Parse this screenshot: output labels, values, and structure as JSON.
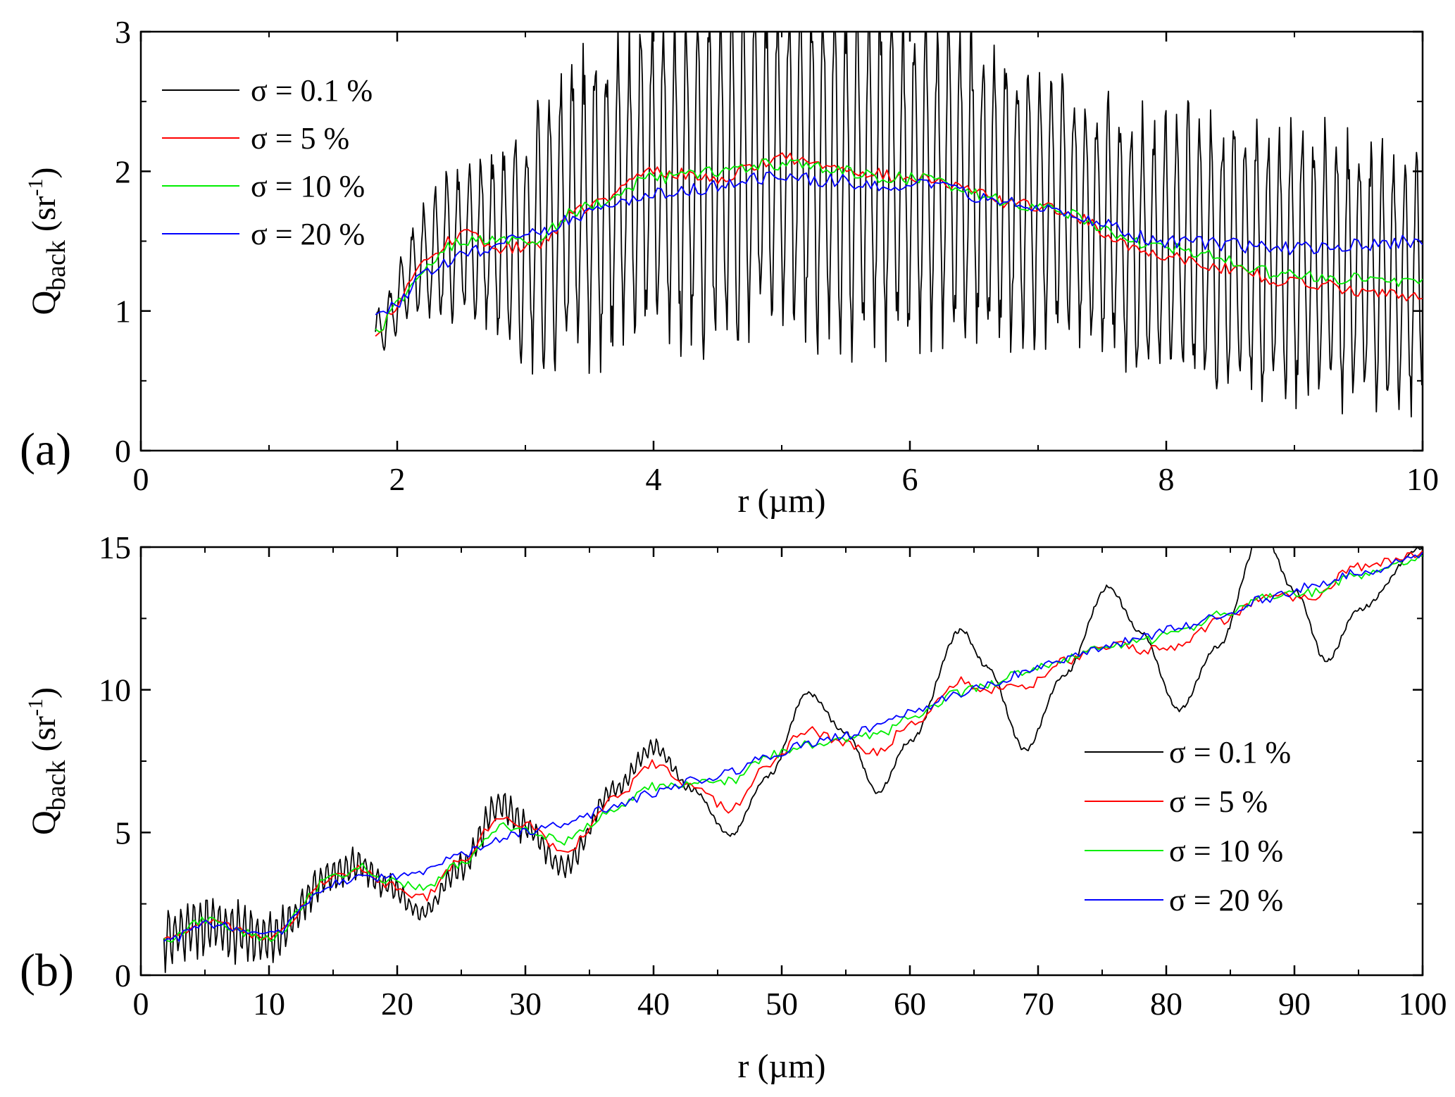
{
  "chart_data": [
    {
      "type": "line",
      "panel_label": "(a)",
      "xlabel": "r (µm)",
      "ylabel_main": "Q",
      "ylabel_sub": "back",
      "ylabel_unit": " (sr",
      "ylabel_exp": "-1",
      "ylabel_close": ")",
      "xlim": [
        0,
        10
      ],
      "ylim": [
        0,
        3
      ],
      "xticks": [
        "0",
        "2",
        "4",
        "6",
        "8",
        "10"
      ],
      "yticks": [
        "0",
        "1",
        "2",
        "3"
      ],
      "grid": false,
      "legend_position": "top-left",
      "series": [
        {
          "name": "σ = 0.1 %",
          "color": "#000000",
          "x_range": [
            1.83,
            10
          ],
          "points": 1200,
          "anchors": [
            [
              1.83,
              0.85
            ],
            [
              2.2,
              1.35
            ],
            [
              2.5,
              1.5
            ],
            [
              3.0,
              1.5
            ],
            [
              3.5,
              1.75
            ],
            [
              4.0,
              1.95
            ],
            [
              5.0,
              2.05
            ],
            [
              6.0,
              1.95
            ],
            [
              7.0,
              1.8
            ],
            [
              8.0,
              1.45
            ],
            [
              9.0,
              1.35
            ],
            [
              10.0,
              1.2
            ]
          ],
          "amp_anchors": [
            [
              1.83,
              0.15
            ],
            [
              2.5,
              0.5
            ],
            [
              3.5,
              1.0
            ],
            [
              4.5,
              1.1
            ],
            [
              5.5,
              1.1
            ],
            [
              6.5,
              1.0
            ],
            [
              7.5,
              0.8
            ],
            [
              8.5,
              0.9
            ],
            [
              10.0,
              0.85
            ]
          ],
          "period": 0.089,
          "clip_top": 3
        },
        {
          "name": "σ = 5 %",
          "color": "#ff0000",
          "x_range": [
            1.83,
            10
          ],
          "points": 260,
          "anchors": [
            [
              1.83,
              0.8
            ],
            [
              2.0,
              1.05
            ],
            [
              2.2,
              1.35
            ],
            [
              2.5,
              1.55
            ],
            [
              2.8,
              1.45
            ],
            [
              3.0,
              1.45
            ],
            [
              3.5,
              1.75
            ],
            [
              4.0,
              2.0
            ],
            [
              4.5,
              1.95
            ],
            [
              5.0,
              2.1
            ],
            [
              5.3,
              2.05
            ],
            [
              6.0,
              1.95
            ],
            [
              7.0,
              1.75
            ],
            [
              8.0,
              1.4
            ],
            [
              8.5,
              1.3
            ],
            [
              9.0,
              1.2
            ],
            [
              10.0,
              1.1
            ]
          ],
          "noise": 0.045
        },
        {
          "name": "σ = 10 %",
          "color": "#00ee00",
          "x_range": [
            1.83,
            10
          ],
          "points": 260,
          "anchors": [
            [
              1.83,
              0.85
            ],
            [
              2.0,
              1.05
            ],
            [
              2.2,
              1.3
            ],
            [
              2.5,
              1.5
            ],
            [
              3.0,
              1.5
            ],
            [
              3.5,
              1.75
            ],
            [
              4.0,
              1.95
            ],
            [
              5.0,
              2.05
            ],
            [
              6.0,
              1.95
            ],
            [
              7.0,
              1.75
            ],
            [
              8.0,
              1.45
            ],
            [
              9.0,
              1.25
            ],
            [
              10.0,
              1.2
            ]
          ],
          "noise": 0.045
        },
        {
          "name": "σ = 20 %",
          "color": "#0000ff",
          "x_range": [
            1.83,
            10
          ],
          "points": 260,
          "anchors": [
            [
              1.83,
              0.95
            ],
            [
              2.0,
              1.05
            ],
            [
              2.2,
              1.25
            ],
            [
              2.5,
              1.4
            ],
            [
              3.0,
              1.55
            ],
            [
              3.5,
              1.7
            ],
            [
              4.0,
              1.85
            ],
            [
              5.0,
              1.95
            ],
            [
              6.0,
              1.9
            ],
            [
              7.0,
              1.75
            ],
            [
              8.0,
              1.5
            ],
            [
              9.0,
              1.45
            ],
            [
              10.0,
              1.5
            ]
          ],
          "noise": 0.05
        }
      ]
    },
    {
      "type": "line",
      "panel_label": "(b)",
      "xlabel": "r (µm)",
      "ylabel_main": "Q",
      "ylabel_sub": "back",
      "ylabel_unit": " (sr",
      "ylabel_exp": "-1",
      "ylabel_close": ")",
      "xlim": [
        0,
        100
      ],
      "ylim": [
        0,
        15
      ],
      "xticks": [
        "0",
        "10",
        "20",
        "30",
        "40",
        "50",
        "60",
        "70",
        "80",
        "90",
        "100"
      ],
      "yticks": [
        "0",
        "5",
        "10",
        "15"
      ],
      "grid": false,
      "legend_position": "middle-right",
      "series": [
        {
          "name": "σ = 0.1 %",
          "color": "#000000",
          "x_range": [
            1.8,
            100
          ],
          "points": 900,
          "anchors": [
            [
              1.8,
              1.3
            ],
            [
              5,
              1.8
            ],
            [
              10,
              1.3
            ],
            [
              15,
              3.5
            ],
            [
              17,
              3.9
            ],
            [
              19,
              3.2
            ],
            [
              22,
              2.2
            ],
            [
              25,
              3.8
            ],
            [
              28,
              6.0
            ],
            [
              30,
              5.2
            ],
            [
              33,
              3.8
            ],
            [
              37,
              6.5
            ],
            [
              40,
              8.0
            ],
            [
              43,
              6.5
            ],
            [
              46,
              4.9
            ],
            [
              49,
              7.0
            ],
            [
              52,
              9.9
            ],
            [
              55,
              8.5
            ],
            [
              57.5,
              6.4
            ],
            [
              60,
              8.2
            ],
            [
              64,
              12.1
            ],
            [
              66,
              10.8
            ],
            [
              69,
              7.9
            ],
            [
              72,
              10.5
            ],
            [
              75.5,
              13.6
            ],
            [
              78,
              12.0
            ],
            [
              81,
              9.3
            ],
            [
              84,
              11.5
            ],
            [
              87.5,
              15.5
            ],
            [
              90,
              13.5
            ],
            [
              92.5,
              11.0
            ],
            [
              95,
              12.8
            ],
            [
              100,
              15.0
            ]
          ],
          "hf_amp_anchors": [
            [
              1.8,
              0.9
            ],
            [
              10,
              0.9
            ],
            [
              12,
              0.6
            ],
            [
              16,
              0.6
            ],
            [
              19,
              0.4
            ],
            [
              21,
              0.25
            ],
            [
              28,
              0.5
            ],
            [
              33,
              0.35
            ],
            [
              40,
              0.25
            ],
            [
              44,
              0.05
            ],
            [
              100,
              0.05
            ]
          ],
          "hf_period": 0.14,
          "noise": 0.04,
          "clip_top": 15
        },
        {
          "name": "σ = 5 %",
          "color": "#ff0000",
          "x_range": [
            1.8,
            100
          ],
          "points": 330,
          "anchors": [
            [
              1.8,
              1.2
            ],
            [
              5,
              1.9
            ],
            [
              10,
              1.3
            ],
            [
              15,
              3.4
            ],
            [
              17,
              3.8
            ],
            [
              19,
              3.2
            ],
            [
              22,
              2.7
            ],
            [
              25,
              4.0
            ],
            [
              28,
              5.5
            ],
            [
              30,
              5.3
            ],
            [
              33,
              4.3
            ],
            [
              37,
              6.2
            ],
            [
              40,
              7.4
            ],
            [
              43,
              6.6
            ],
            [
              46,
              5.8
            ],
            [
              49,
              7.4
            ],
            [
              52,
              8.6
            ],
            [
              55,
              8.1
            ],
            [
              57.5,
              7.8
            ],
            [
              60,
              8.8
            ],
            [
              64,
              10.3
            ],
            [
              66,
              10.0
            ],
            [
              69,
              10.1
            ],
            [
              72,
              11.0
            ],
            [
              76,
              11.6
            ],
            [
              78,
              11.4
            ],
            [
              81,
              11.5
            ],
            [
              84,
              12.4
            ],
            [
              88,
              13.3
            ],
            [
              91,
              13.2
            ],
            [
              95,
              14.3
            ],
            [
              100,
              14.8
            ]
          ],
          "noise": 0.16
        },
        {
          "name": "σ = 10 %",
          "color": "#00ee00",
          "x_range": [
            1.8,
            100
          ],
          "points": 330,
          "anchors": [
            [
              1.8,
              1.2
            ],
            [
              5,
              1.9
            ],
            [
              10,
              1.3
            ],
            [
              15,
              3.4
            ],
            [
              17,
              3.8
            ],
            [
              19,
              3.3
            ],
            [
              22,
              3.1
            ],
            [
              25,
              3.9
            ],
            [
              28,
              5.2
            ],
            [
              30,
              5.1
            ],
            [
              33,
              4.7
            ],
            [
              37,
              5.8
            ],
            [
              40,
              6.6
            ],
            [
              43,
              6.7
            ],
            [
              46,
              6.8
            ],
            [
              49,
              7.7
            ],
            [
              52,
              8.1
            ],
            [
              55,
              8.2
            ],
            [
              58,
              8.5
            ],
            [
              60,
              9.1
            ],
            [
              64,
              9.9
            ],
            [
              66,
              10.2
            ],
            [
              69,
              10.6
            ],
            [
              72,
              11.1
            ],
            [
              76,
              11.6
            ],
            [
              78,
              11.7
            ],
            [
              81,
              12.0
            ],
            [
              84,
              12.6
            ],
            [
              88,
              13.3
            ],
            [
              91,
              13.4
            ],
            [
              95,
              14.0
            ],
            [
              100,
              14.6
            ]
          ],
          "noise": 0.16
        },
        {
          "name": "σ = 20 %",
          "color": "#0000ff",
          "x_range": [
            1.8,
            100
          ],
          "points": 330,
          "anchors": [
            [
              1.8,
              1.1
            ],
            [
              5,
              1.8
            ],
            [
              10,
              1.4
            ],
            [
              15,
              3.2
            ],
            [
              17,
              3.4
            ],
            [
              19,
              3.4
            ],
            [
              22,
              3.6
            ],
            [
              25,
              4.2
            ],
            [
              28,
              4.8
            ],
            [
              30,
              5.0
            ],
            [
              33,
              5.3
            ],
            [
              37,
              5.9
            ],
            [
              40,
              6.4
            ],
            [
              43,
              6.8
            ],
            [
              46,
              7.1
            ],
            [
              49,
              7.7
            ],
            [
              52,
              8.1
            ],
            [
              55,
              8.4
            ],
            [
              58,
              8.8
            ],
            [
              60,
              9.2
            ],
            [
              64,
              9.9
            ],
            [
              66,
              10.2
            ],
            [
              69,
              10.6
            ],
            [
              72,
              11.1
            ],
            [
              76,
              11.6
            ],
            [
              78,
              11.8
            ],
            [
              81,
              12.2
            ],
            [
              84,
              12.6
            ],
            [
              88,
              13.2
            ],
            [
              91,
              13.6
            ],
            [
              95,
              14.1
            ],
            [
              100,
              14.7
            ]
          ],
          "noise": 0.16
        }
      ]
    }
  ]
}
